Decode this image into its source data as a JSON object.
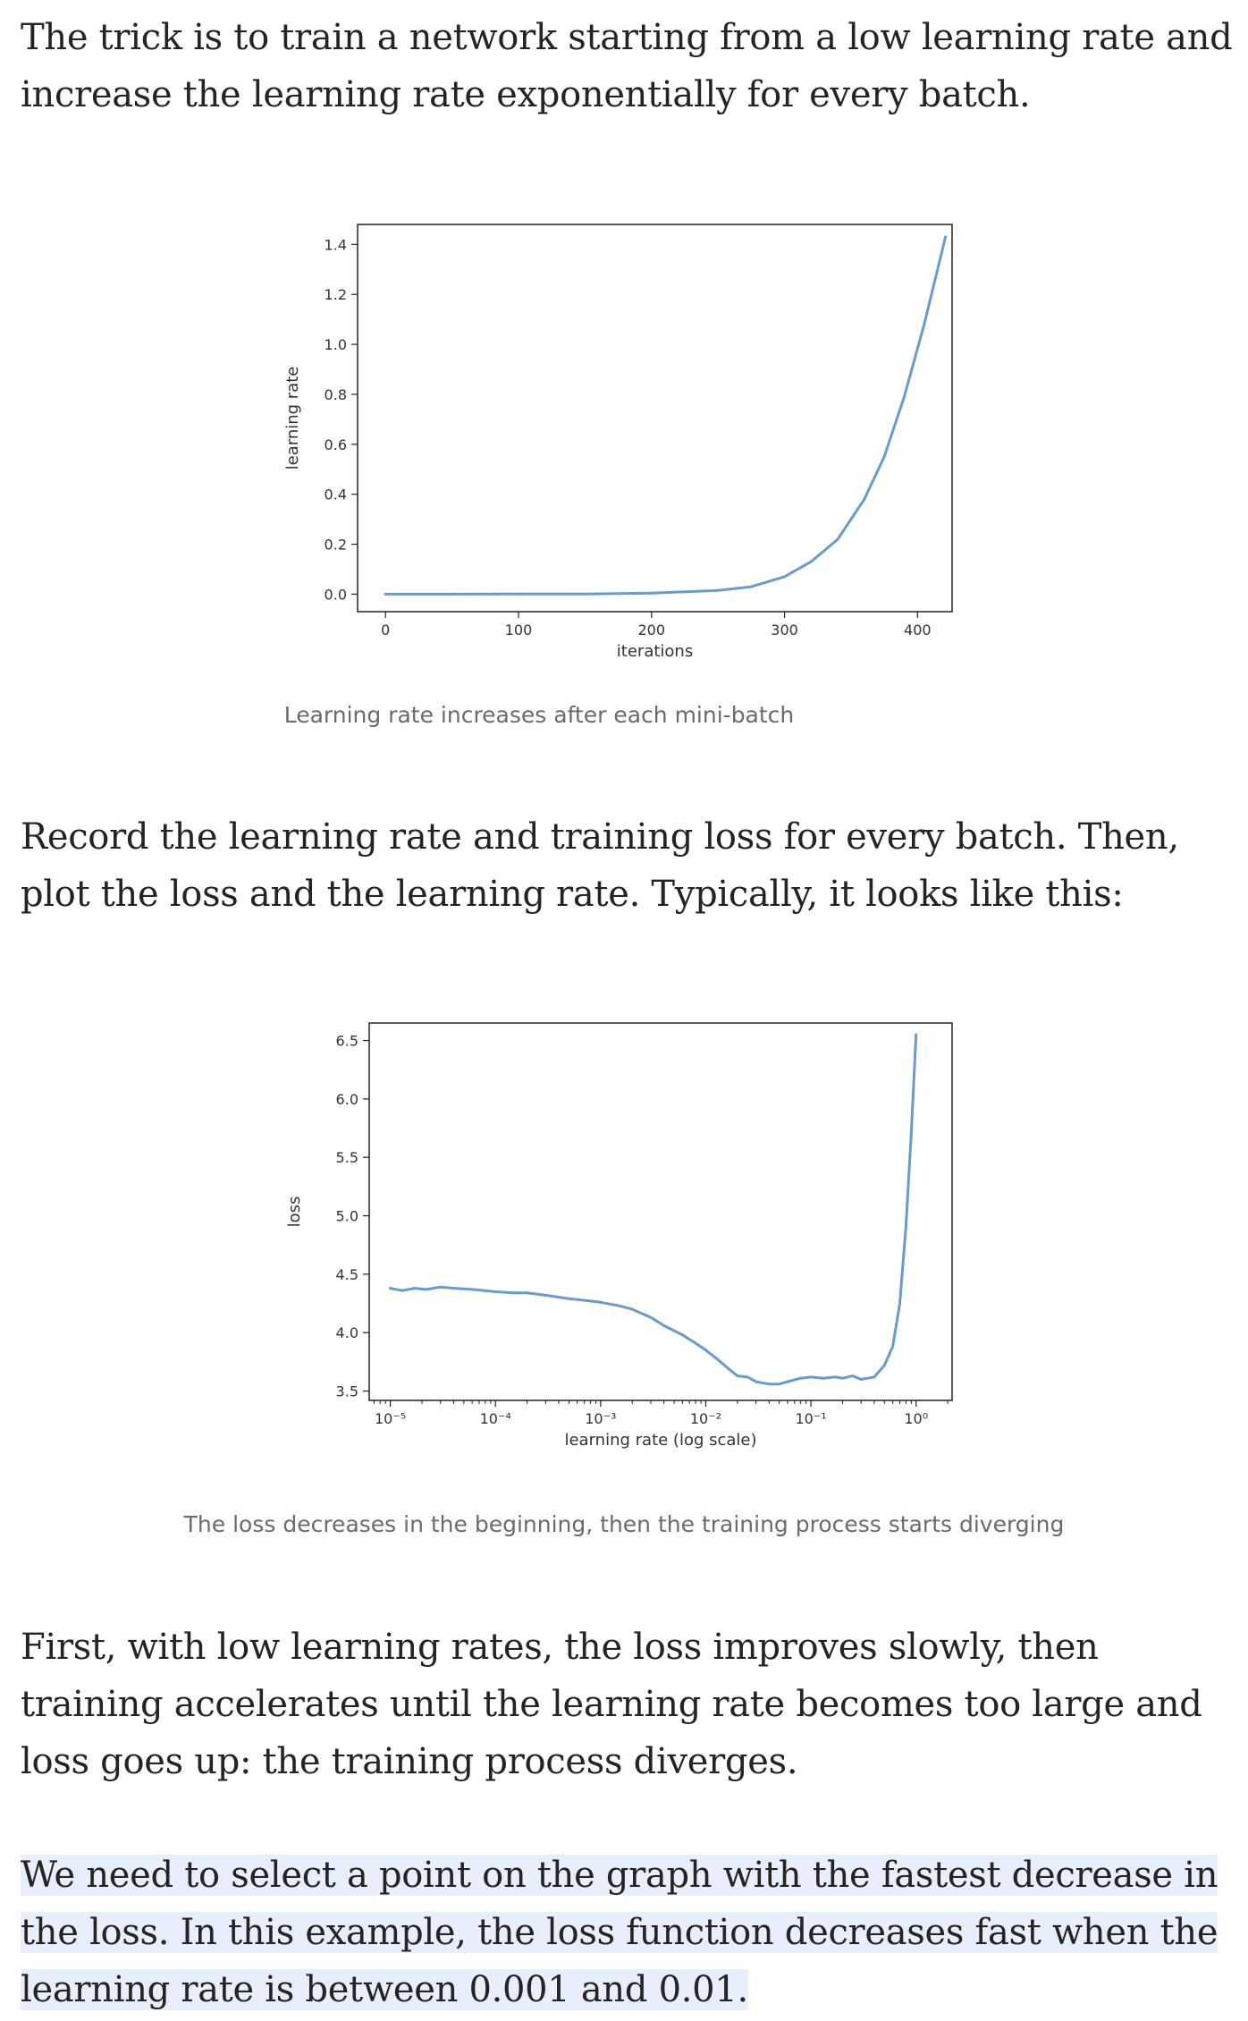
{
  "article": {
    "p1": "The trick is to train a network starting from a low learning rate and increase the learning rate exponentially for every batch.",
    "caption1": "Learning rate increases after each mini-batch",
    "p2": "Record the learning rate and training loss for every batch. Then, plot the loss and the learning rate. Typically, it looks like this:",
    "caption2": "The loss decreases in the beginning, then the training process starts diverging",
    "p3": "First, with low learning rates, the loss improves slowly, then training accelerates until the learning rate becomes too large and loss goes up: the training process diverges.",
    "p4": "We need to select a point on the graph with the fastest decrease in the loss. In this example, the loss function decreases fast when the learning rate is between 0.001 and 0.01."
  },
  "colors": {
    "line": "#6b9bc8",
    "highlight": "#e8eefb",
    "text": "#242424",
    "caption": "#6b6b6b"
  },
  "chart_data": [
    {
      "type": "line",
      "xlabel": "iterations",
      "ylabel": "learning rate",
      "xlim": [
        -21,
        426
      ],
      "ylim": [
        -0.07,
        1.48
      ],
      "xticks": [
        0,
        100,
        200,
        300,
        400
      ],
      "xtick_labels": [
        "0",
        "100",
        "200",
        "300",
        "400"
      ],
      "yticks": [
        0.0,
        0.2,
        0.4,
        0.6,
        0.8,
        1.0,
        1.2,
        1.4
      ],
      "ytick_labels": [
        "0.0",
        "0.2",
        "0.4",
        "0.6",
        "0.8",
        "1.0",
        "1.2",
        "1.4"
      ],
      "grid": false,
      "series": [
        {
          "x": [
            0,
            50,
            100,
            150,
            200,
            250,
            275,
            300,
            320,
            340,
            360,
            375,
            390,
            405,
            421
          ],
          "y": [
            1e-05,
            0.0001,
            0.0004,
            0.001,
            0.004,
            0.015,
            0.03,
            0.07,
            0.13,
            0.22,
            0.38,
            0.55,
            0.79,
            1.08,
            1.43
          ]
        }
      ]
    },
    {
      "type": "line",
      "xlabel": "learning rate (log scale)",
      "ylabel": "loss",
      "xscale": "log",
      "xlim": [
        6.3e-06,
        2.2
      ],
      "ylim": [
        3.42,
        6.65
      ],
      "xticks": [
        1e-05,
        0.0001,
        0.001,
        0.01,
        0.1,
        1
      ],
      "xtick_labels": [
        "10⁻⁵",
        "10⁻⁴",
        "10⁻³",
        "10⁻²",
        "10⁻¹",
        "10⁰"
      ],
      "yticks": [
        3.5,
        4.0,
        4.5,
        5.0,
        5.5,
        6.0,
        6.5
      ],
      "ytick_labels": [
        "3.5",
        "4.0",
        "4.5",
        "5.0",
        "5.5",
        "6.0",
        "6.5"
      ],
      "grid": false,
      "series": [
        {
          "x": [
            1e-05,
            1.3e-05,
            1.7e-05,
            2.2e-05,
            3e-05,
            4e-05,
            6e-05,
            0.0001,
            0.00015,
            0.0002,
            0.0003,
            0.0005,
            0.0008,
            0.001,
            0.0015,
            0.002,
            0.003,
            0.004,
            0.006,
            0.008,
            0.01,
            0.013,
            0.017,
            0.02,
            0.025,
            0.03,
            0.04,
            0.05,
            0.06,
            0.08,
            0.1,
            0.13,
            0.17,
            0.2,
            0.25,
            0.3,
            0.4,
            0.5,
            0.6,
            0.7,
            0.8,
            0.9,
            1.0
          ],
          "y": [
            4.38,
            4.36,
            4.38,
            4.37,
            4.39,
            4.38,
            4.37,
            4.35,
            4.34,
            4.34,
            4.32,
            4.29,
            4.27,
            4.26,
            4.23,
            4.2,
            4.13,
            4.06,
            3.98,
            3.91,
            3.85,
            3.77,
            3.68,
            3.63,
            3.62,
            3.58,
            3.56,
            3.56,
            3.58,
            3.61,
            3.62,
            3.61,
            3.62,
            3.61,
            3.63,
            3.6,
            3.62,
            3.72,
            3.88,
            4.25,
            4.9,
            5.7,
            6.55
          ]
        }
      ]
    }
  ]
}
